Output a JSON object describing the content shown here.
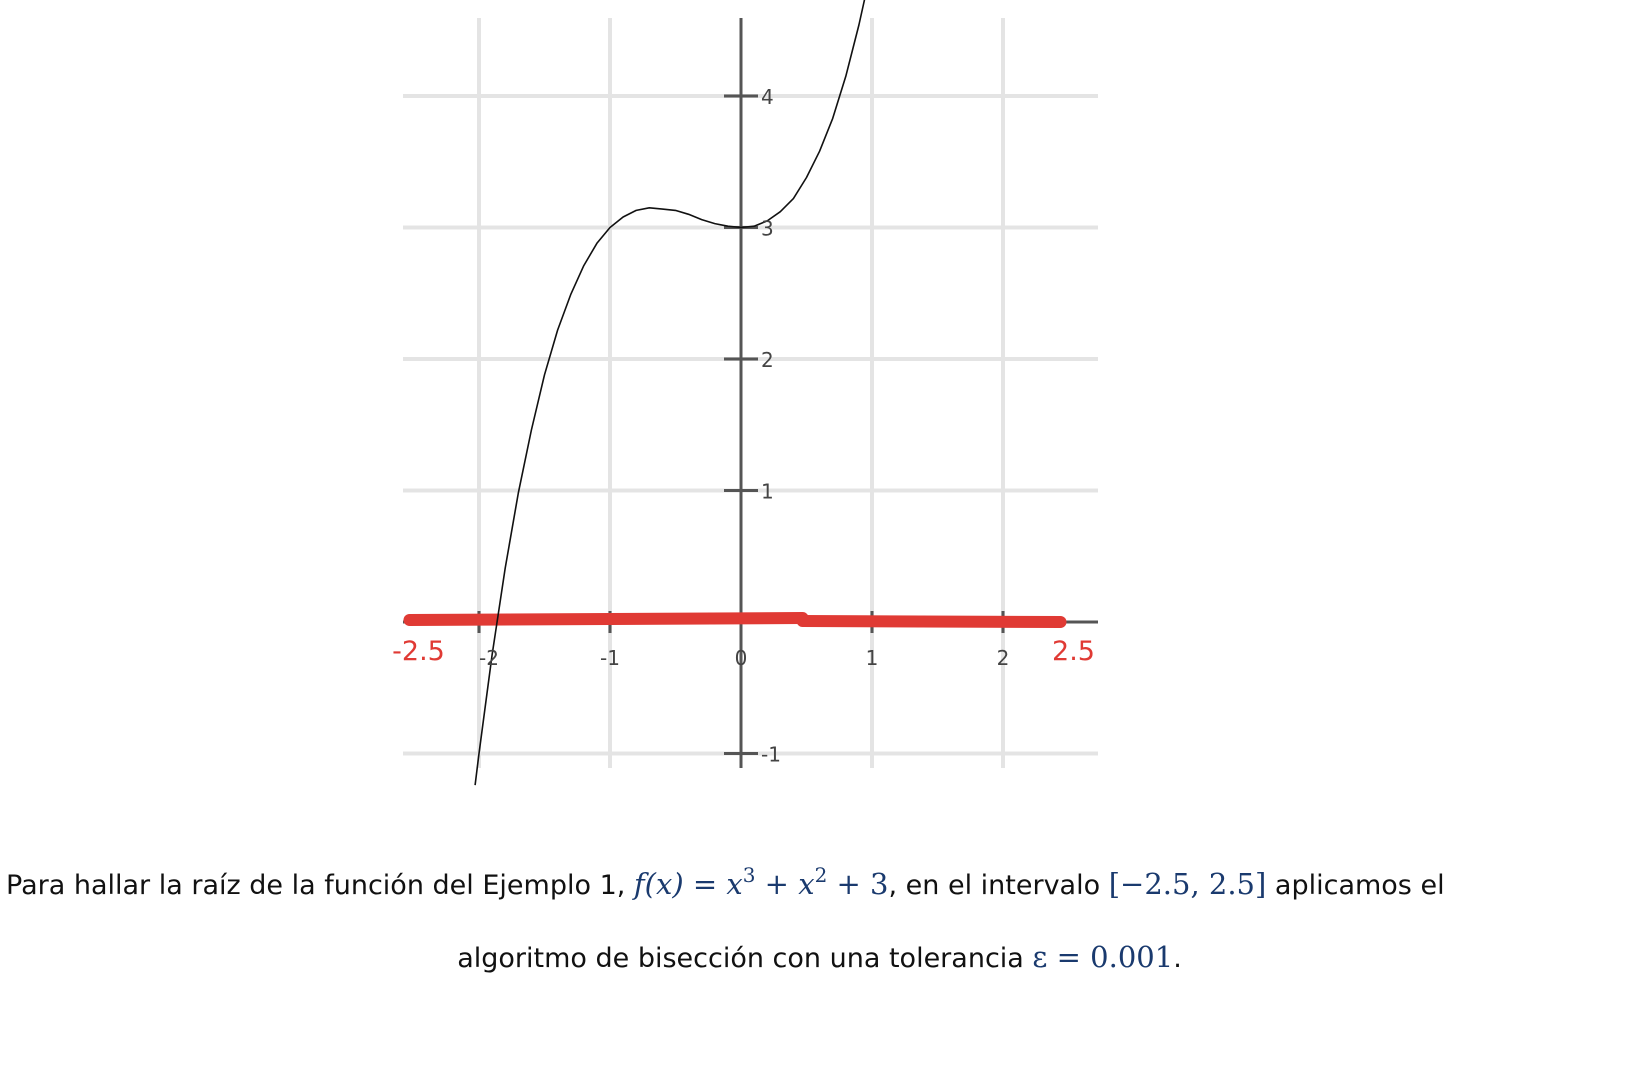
{
  "chart_data": {
    "type": "line",
    "function": "x^3 + x^2 + 3",
    "x": [
      -2.03,
      -2.0,
      -1.9,
      -1.8,
      -1.7,
      -1.6,
      -1.5,
      -1.4,
      -1.3,
      -1.2,
      -1.1,
      -1.0,
      -0.9,
      -0.8,
      -0.7,
      -0.6,
      -0.5,
      -0.4,
      -0.3,
      -0.2,
      -0.1,
      0.0,
      0.1,
      0.2,
      0.3,
      0.4,
      0.5,
      0.6,
      0.7,
      0.8,
      0.9,
      0.98
    ],
    "y": [
      -1.24,
      -1.0,
      -0.25,
      0.41,
      0.98,
      1.46,
      1.88,
      2.22,
      2.49,
      2.71,
      2.88,
      3.0,
      3.08,
      3.13,
      3.15,
      3.14,
      3.13,
      3.1,
      3.06,
      3.03,
      3.01,
      3.0,
      3.01,
      3.05,
      3.12,
      3.22,
      3.38,
      3.58,
      3.83,
      4.15,
      4.54,
      4.9
    ],
    "xlim": [
      -2.55,
      2.75
    ],
    "ylim": [
      -1.2,
      4.6
    ],
    "x_ticks": [
      -2,
      -1,
      0,
      1,
      2
    ],
    "x_tick_labels": [
      "-2",
      "-1",
      "0",
      "1",
      "2"
    ],
    "y_ticks": [
      -1,
      1,
      2,
      3,
      4
    ],
    "y_tick_labels": [
      "-1",
      "1",
      "2",
      "3",
      "4"
    ],
    "grid": true,
    "colors": {
      "curve": "#111111",
      "grid": "#e4e4e4",
      "axis": "#555555",
      "interval": "#e03a34"
    },
    "interval": [
      -2.5,
      2.5
    ],
    "interval_labels": [
      "-2.5",
      "2.5"
    ],
    "annotations": []
  },
  "caption": {
    "line1_text": "Para hallar la raíz de la función del Ejemplo 1, ",
    "func_lhs": "f(x) = ",
    "func_x3": "x",
    "exp3": "3",
    "func_plus1": " + ",
    "func_x2": "x",
    "exp2": "2",
    "func_tail": " + 3",
    "line1_mid": ", en el intervalo ",
    "interval_math": "[−2.5, 2.5]",
    "line1_end": " aplicamos el",
    "line2_text": "algoritmo de bisección con una tolerancia ",
    "epsilon_math": "ε = 0.001",
    "line2_end": "."
  }
}
